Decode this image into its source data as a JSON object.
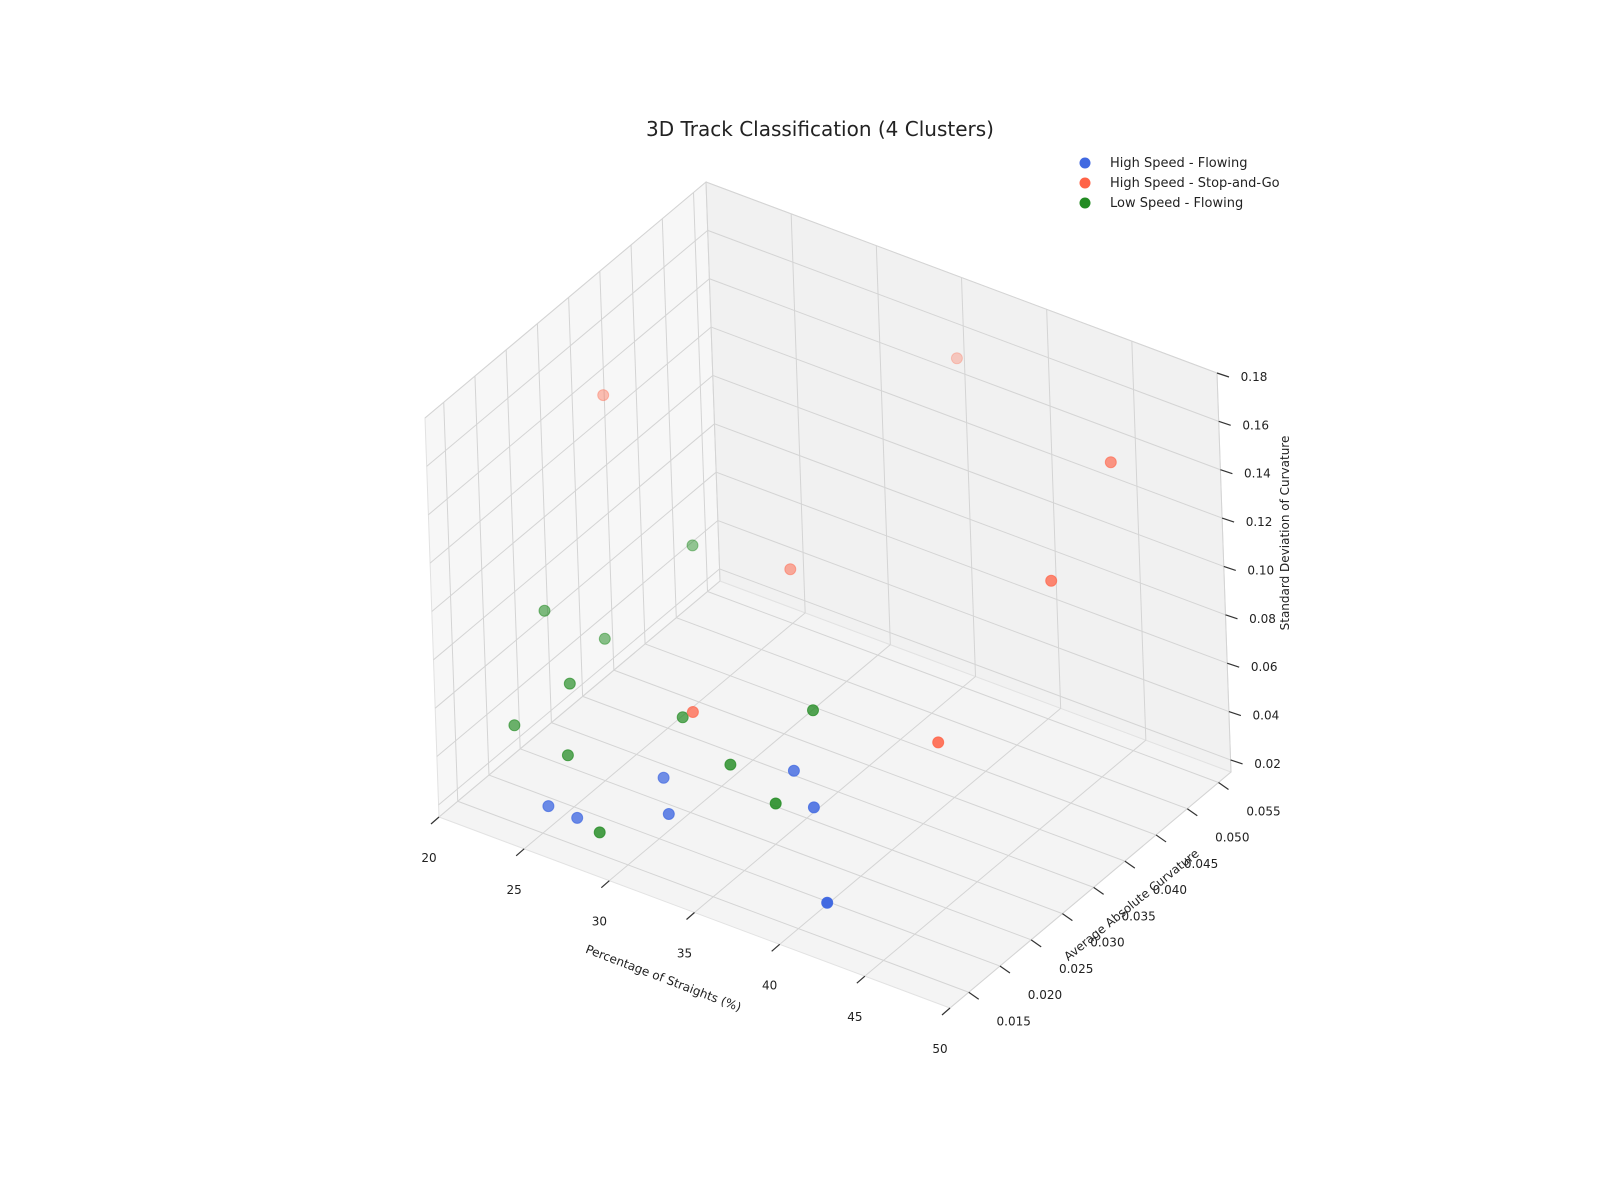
{
  "chart_data": {
    "type": "scatter",
    "subtype": "3d",
    "title": "3D Track Classification (4 Clusters)",
    "xlabel": "Percentage of Straights (%)",
    "ylabel": "Average Absolute Curvature",
    "zlabel": "Standard Deviation of Curvature",
    "xlim": [
      20,
      50
    ],
    "ylim": [
      0.012,
      0.057
    ],
    "zlim": [
      0.015,
      0.18
    ],
    "xticks": [
      "20",
      "25",
      "30",
      "35",
      "40",
      "45",
      "50"
    ],
    "yticks": [
      "0.015",
      "0.020",
      "0.025",
      "0.030",
      "0.035",
      "0.040",
      "0.045",
      "0.050",
      "0.055"
    ],
    "zticks": [
      "0.02",
      "0.04",
      "0.06",
      "0.08",
      "0.10",
      "0.12",
      "0.14",
      "0.16",
      "0.18"
    ],
    "grid": true,
    "legend_position": "top-right",
    "series": [
      {
        "name": "High Speed - Flowing",
        "color": "#4169e1",
        "points": [
          [
            25.0,
            0.016,
            0.024
          ],
          [
            26.5,
            0.0165,
            0.022
          ],
          [
            31.0,
            0.019,
            0.03
          ],
          [
            30.0,
            0.021,
            0.038
          ],
          [
            38.5,
            0.022,
            0.046
          ],
          [
            41.0,
            0.017,
            0.024
          ],
          [
            37.0,
            0.023,
            0.055
          ]
        ]
      },
      {
        "name": "High Speed - Stop-and-Go",
        "color": "#ff6347",
        "points": [
          [
            31.5,
            0.022,
            0.067
          ],
          [
            23.0,
            0.032,
            0.154
          ],
          [
            33.0,
            0.034,
            0.104
          ],
          [
            38.0,
            0.048,
            0.174
          ],
          [
            48.5,
            0.034,
            0.14
          ],
          [
            50.0,
            0.04,
            0.18
          ],
          [
            44.5,
            0.026,
            0.08
          ]
        ]
      },
      {
        "name": "Low Speed - Flowing",
        "color": "#228b22",
        "points": [
          [
            22.0,
            0.019,
            0.043
          ],
          [
            25.5,
            0.018,
            0.042
          ],
          [
            28.0,
            0.016,
            0.021
          ],
          [
            25.0,
            0.02,
            0.066
          ],
          [
            22.5,
            0.023,
            0.083
          ],
          [
            24.5,
            0.027,
            0.068
          ],
          [
            28.0,
            0.032,
            0.105
          ],
          [
            30.5,
            0.023,
            0.06
          ],
          [
            34.0,
            0.021,
            0.054
          ],
          [
            37.0,
            0.02,
            0.048
          ],
          [
            37.5,
            0.025,
            0.077
          ]
        ]
      }
    ]
  }
}
